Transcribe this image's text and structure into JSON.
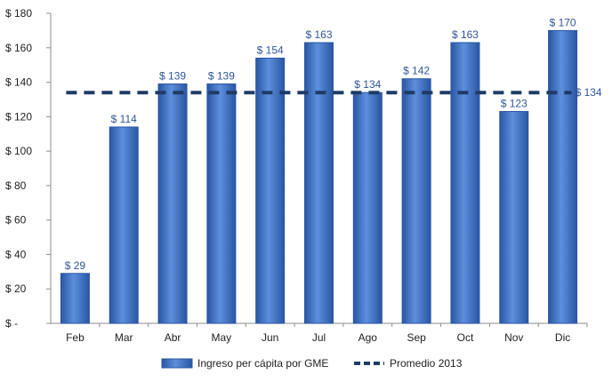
{
  "chart_data": {
    "type": "bar",
    "categories": [
      "Feb",
      "Mar",
      "Abr",
      "May",
      "Jun",
      "Jul",
      "Ago",
      "Sep",
      "Oct",
      "Nov",
      "Dic"
    ],
    "series": [
      {
        "name": "Ingreso per cápita por GME",
        "values": [
          29,
          114,
          139,
          139,
          154,
          163,
          134,
          142,
          163,
          123,
          170
        ],
        "data_labels": [
          "$ 29",
          "$ 114",
          "$ 139",
          "$ 139",
          "$ 154",
          "$ 163",
          "$ 134",
          "$ 142",
          "$ 163",
          "$ 123",
          "$ 170"
        ],
        "color": "#3a6fc4"
      },
      {
        "name": "Promedio 2013",
        "type": "line",
        "style": "dashed",
        "value": 134,
        "end_label": "$ 134",
        "color": "#1f3b66"
      }
    ],
    "ylim": [
      0,
      180
    ],
    "ytick_values": [
      0,
      20,
      40,
      60,
      80,
      100,
      120,
      140,
      160,
      180
    ],
    "ytick_labels": [
      "$ -",
      "$ 20",
      "$ 40",
      "$ 60",
      "$ 80",
      "$ 100",
      "$ 120",
      "$ 140",
      "$ 160",
      "$ 180"
    ],
    "grid": false,
    "legend_position": "bottom",
    "label_color": "#2f5597"
  }
}
